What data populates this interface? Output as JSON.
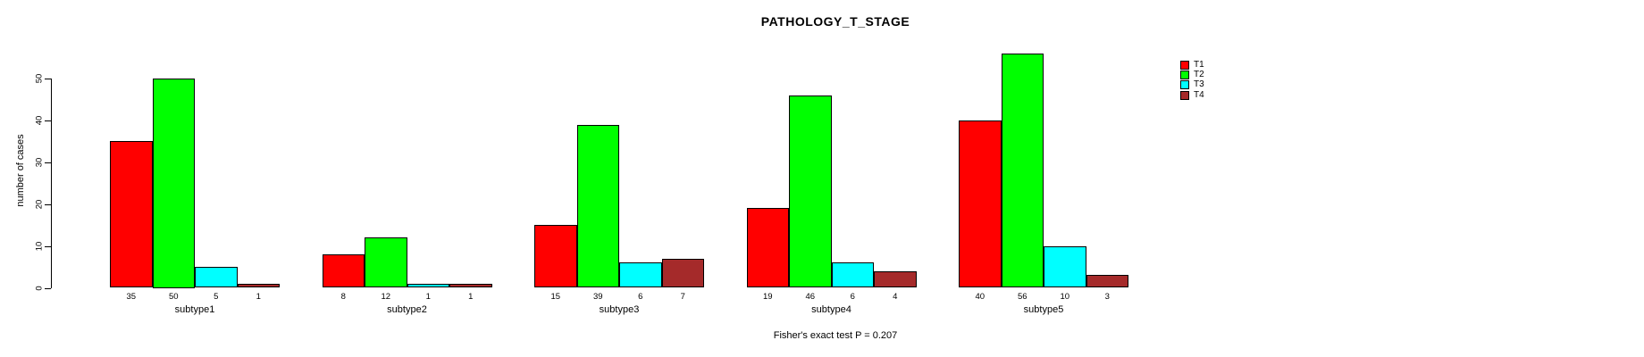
{
  "title": "PATHOLOGY_T_STAGE",
  "footer": {
    "stat_test": "Fisher's exact test P = 0.207"
  },
  "chart_data": {
    "type": "bar",
    "title": "PATHOLOGY_T_STAGE",
    "xlabel": "",
    "ylabel": "number of cases",
    "categories": [
      "subtype1",
      "subtype2",
      "subtype3",
      "subtype4",
      "subtype5"
    ],
    "series": [
      {
        "name": "T1",
        "color": "#FF0000",
        "values": [
          35,
          8,
          15,
          19,
          40
        ]
      },
      {
        "name": "T2",
        "color": "#00FF00",
        "values": [
          50,
          12,
          39,
          46,
          56
        ]
      },
      {
        "name": "T3",
        "color": "#00FFFF",
        "values": [
          5,
          1,
          6,
          6,
          10
        ]
      },
      {
        "name": "T4",
        "color": "#A52A2A",
        "values": [
          1,
          1,
          7,
          4,
          3
        ]
      }
    ],
    "bar_value_labels": [
      [
        35,
        50,
        5,
        1
      ],
      [
        8,
        12,
        1,
        1
      ],
      [
        15,
        39,
        6,
        7
      ],
      [
        19,
        46,
        6,
        4
      ],
      [
        40,
        56,
        10,
        3
      ]
    ],
    "ylim": [
      0,
      50
    ],
    "yticks": [
      0,
      10,
      20,
      30,
      40,
      50
    ],
    "grid": false,
    "legend_position": "right",
    "legend": [
      "T1",
      "T2",
      "T3",
      "T4"
    ],
    "annotation": "Fisher's exact test P = 0.207"
  }
}
